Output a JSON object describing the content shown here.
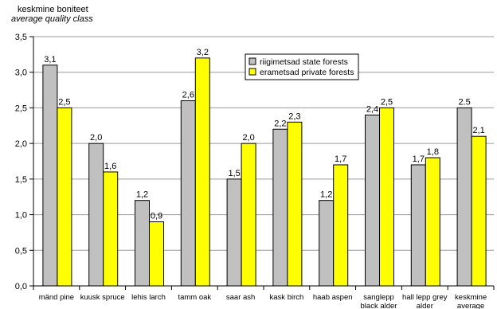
{
  "chart_data": {
    "type": "bar",
    "ylabel": "keskmine boniteet",
    "ylabel_sub": "average quality class",
    "ylim": [
      0,
      3.5
    ],
    "yticks": [
      "0,0",
      "0,5",
      "1,0",
      "1,5",
      "2,0",
      "2,5",
      "3,0",
      "3,5"
    ],
    "grid": true,
    "legend_position": "top-right",
    "categories": [
      [
        "mänd pine"
      ],
      [
        "kuusk spruce"
      ],
      [
        "lehis larch"
      ],
      [
        "tamm oak"
      ],
      [
        "saar ash"
      ],
      [
        "kask birch"
      ],
      [
        "haab aspen"
      ],
      [
        "sanglepp",
        "black alder"
      ],
      [
        "hall lepp grey",
        "alder"
      ],
      [
        "keskmine",
        "average"
      ]
    ],
    "series": [
      {
        "name": "riigimetsad state forests",
        "color": "#c0c0c0",
        "values": [
          3.1,
          2.0,
          1.2,
          2.6,
          1.5,
          2.2,
          1.2,
          2.4,
          1.7,
          2.5
        ],
        "labels": [
          "3,1",
          "2,0",
          "1,2",
          "2,6",
          "1,5",
          "2,2",
          "1,2",
          "2,4",
          "1,7",
          "2.5"
        ]
      },
      {
        "name": "erametsad private forests",
        "color": "#ffff00",
        "values": [
          2.5,
          1.6,
          0.9,
          3.2,
          2.0,
          2.3,
          1.7,
          2.5,
          1.8,
          2.1
        ],
        "labels": [
          "2,5",
          "1,6",
          "0,9",
          "3,2",
          "2,0",
          "2,3",
          "1,7",
          "2,5",
          "1,8",
          "2,1"
        ]
      }
    ]
  }
}
